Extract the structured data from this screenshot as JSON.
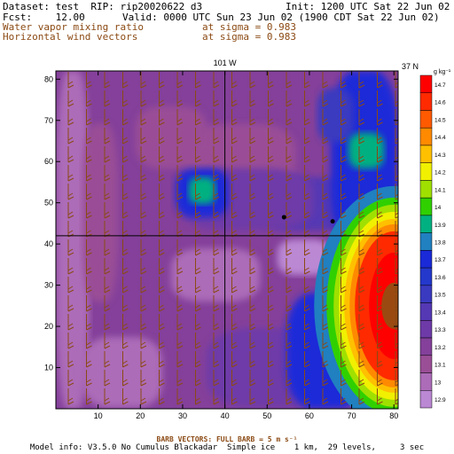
{
  "header": {
    "dataset_line": "Dataset: test  RIP: rip20020622 d3",
    "init_line": "Init: 1200 UTC Sat 22 Jun 02",
    "fcst_line": "Fcst:    12.00",
    "valid_line": "Valid: 0000 UTC Sun 23 Jun 02 (1900 CDT Sat 22 Jun 02)",
    "field1_line": "Water vapor mixing ratio",
    "sigma1_line": "at sigma = 0.983",
    "field2_line": "Horizontal wind vectors",
    "sigma2_line": "at sigma = 0.983"
  },
  "footer": {
    "barb_line": "BARB VECTORS:  FULL BARB = 5 m s⁻¹",
    "model_line": "Model info: V3.5.0 No Cumulus Blackadar  Simple ice    1 km,  29 levels,     3 sec"
  },
  "colors": {
    "frame": "#000000",
    "barb": "#8b4a14",
    "header_text": "#000000",
    "field_text": "#8b4a14"
  },
  "chart_data": {
    "type": "heatmap",
    "title": "Water vapor mixing ratio",
    "x_tick_labels": [
      "10",
      "20",
      "30",
      "40",
      "50",
      "60",
      "70",
      "80"
    ],
    "y_tick_labels": [
      "10",
      "20",
      "30",
      "40",
      "50",
      "60",
      "70",
      "80"
    ],
    "xlim": [
      0,
      81
    ],
    "ylim": [
      0,
      82
    ],
    "vertical_line_label": "101 W",
    "horizontal_line_label": "37 N",
    "vertical_line_x": 40,
    "horizontal_line_y": 42,
    "colorbar_unit": "g kg⁻¹",
    "colorbar_levels": [
      "14.7",
      "14.6",
      "14.5",
      "14.4",
      "14.3",
      "14.2",
      "14.1",
      "14",
      "13.9",
      "13.8",
      "13.7",
      "13.6",
      "13.5",
      "13.4",
      "13.3",
      "13.2",
      "13.1",
      "13",
      "12.9"
    ],
    "colorbar_colors": [
      "#ff0000",
      "#ff2a00",
      "#ff5a00",
      "#ff8a00",
      "#ffc000",
      "#f0f000",
      "#a0e000",
      "#30d000",
      "#00b080",
      "#2080c0",
      "#1a2ad8",
      "#2438cc",
      "#3a3ac0",
      "#5438b4",
      "#6e3aa8",
      "#84409a",
      "#9a4e96",
      "#ac6cb8",
      "#bb88d4"
    ],
    "dots": [
      [
        54,
        46.5
      ],
      [
        65.5,
        45.5
      ]
    ],
    "grid": false
  }
}
